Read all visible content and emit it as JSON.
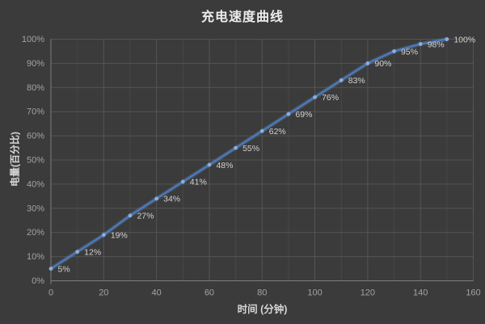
{
  "page": {
    "background": "#3b3b3b"
  },
  "chart_data": {
    "type": "line",
    "title": "充电速度曲线",
    "xlabel": "时间 (分钟)",
    "ylabel": "电量(百分比)",
    "x": [
      0,
      10,
      20,
      30,
      40,
      50,
      60,
      70,
      80,
      90,
      100,
      110,
      120,
      130,
      140,
      150
    ],
    "values": [
      5,
      12,
      19,
      27,
      34,
      41,
      48,
      55,
      62,
      69,
      76,
      83,
      90,
      95,
      98,
      100
    ],
    "data_labels": [
      "5%",
      "12%",
      "19%",
      "27%",
      "34%",
      "41%",
      "48%",
      "55%",
      "62%",
      "69%",
      "76%",
      "83%",
      "90%",
      "95%",
      "98%",
      "100%"
    ],
    "xlim": [
      0,
      160
    ],
    "ylim": [
      0,
      100
    ],
    "x_ticks": [
      0,
      20,
      40,
      60,
      80,
      100,
      120,
      140,
      160
    ],
    "x_minor_grid_step": 10,
    "y_ticks": [
      "0%",
      "10%",
      "20%",
      "30%",
      "40%",
      "50%",
      "60%",
      "70%",
      "80%",
      "90%",
      "100%"
    ],
    "grid": true,
    "legend": "none",
    "colors": {
      "background": "#3b3b3b",
      "line": "#4a7dc4",
      "line_glow": "#6f9bd6",
      "marker": "#8aaede",
      "grid_major": "#555555",
      "grid_minor": "#474747",
      "axis_line": "#7e7e7e",
      "tick_label": "#a3a3a3",
      "data_label": "#d2d2d2",
      "title": "#ededed",
      "axis_title": "#d6d6d6"
    }
  }
}
